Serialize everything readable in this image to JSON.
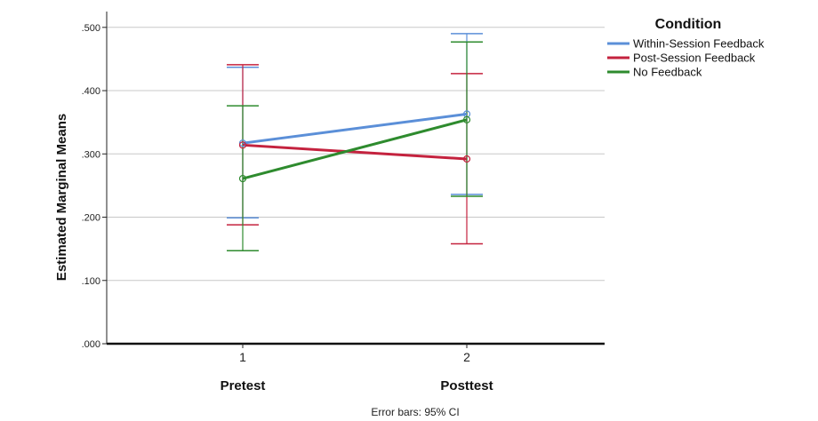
{
  "chart_data": {
    "type": "line",
    "ylabel": "Estimated Marginal Means",
    "xlabel": "",
    "x": [
      "1",
      "2"
    ],
    "group_labels": [
      "Pretest",
      "Posttest"
    ],
    "yticks": [
      ".000",
      ".100",
      ".200",
      ".300",
      ".400",
      ".500"
    ],
    "ylim": [
      0,
      0.525
    ],
    "grid": "horizontal",
    "footnote": "Error bars: 95% CI",
    "legend": {
      "title": "Condition",
      "placement": "top-right"
    },
    "series": [
      {
        "name": "Within-Session Feedback",
        "color": "#5b8fd8",
        "values": [
          0.317,
          0.363
        ],
        "ci_low": [
          0.199,
          0.236
        ],
        "ci_high": [
          0.437,
          0.49
        ]
      },
      {
        "name": "Post-Session Feedback",
        "color": "#c4223e",
        "values": [
          0.314,
          0.292
        ],
        "ci_low": [
          0.188,
          0.158
        ],
        "ci_high": [
          0.441,
          0.427
        ]
      },
      {
        "name": "No Feedback",
        "color": "#2e8b2e",
        "values": [
          0.261,
          0.354
        ],
        "ci_low": [
          0.147,
          0.233
        ],
        "ci_high": [
          0.376,
          0.477
        ]
      }
    ]
  }
}
